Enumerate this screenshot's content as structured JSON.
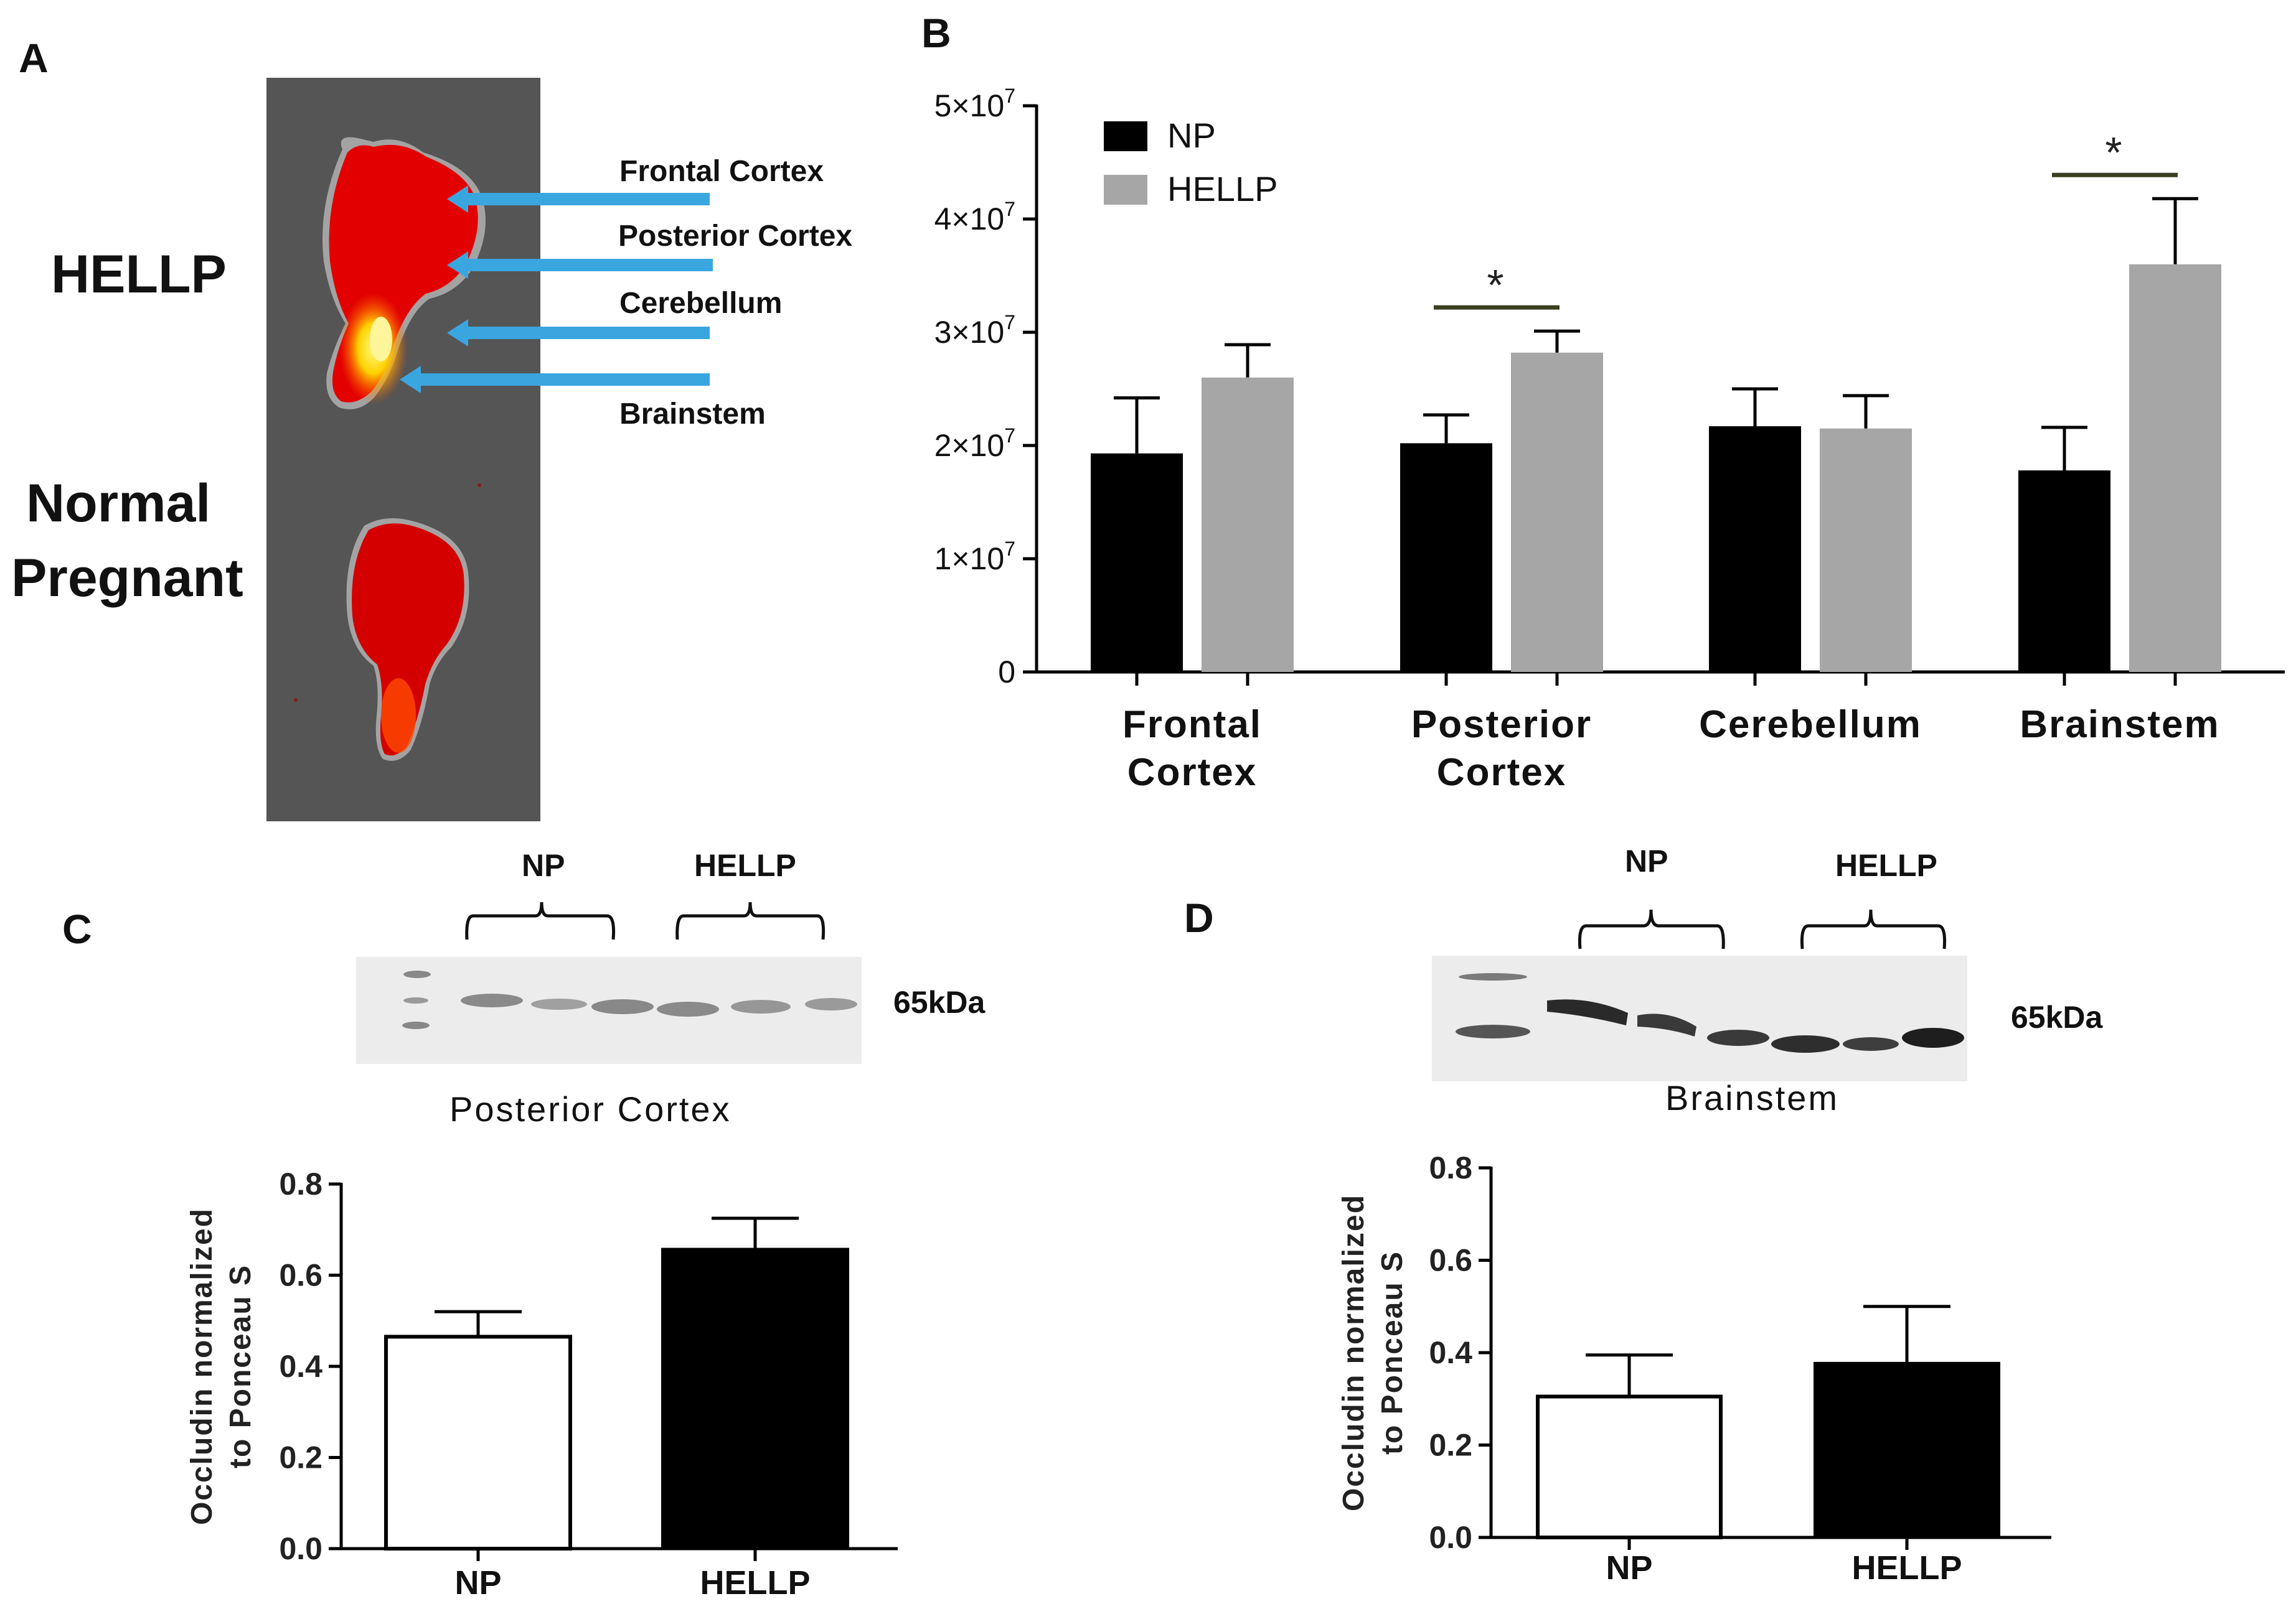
{
  "colors": {
    "np": "#000000",
    "hellp": "#a6a6a6",
    "arrow": "#3aa6e0",
    "sigline": "#3a4020"
  },
  "panel_a": {
    "letter": "A",
    "group_hellp": "HELLP",
    "group_np_line1": "Normal",
    "group_np_line2": "Pregnant",
    "regions": [
      "Frontal Cortex",
      "Posterior Cortex",
      "Cerebellum",
      "Brainstem"
    ]
  },
  "panel_c_blot": {
    "letter": "C",
    "np_label": "NP",
    "hellp_label": "HELLP",
    "size_label": "65kDa",
    "caption": "Posterior Cortex"
  },
  "panel_d_blot": {
    "letter": "D",
    "np_label": "NP",
    "hellp_label": "HELLP",
    "size_label": "65kDa",
    "caption": "Brainstem"
  },
  "chart_data": [
    {
      "panel": "B",
      "type": "bar",
      "categories": [
        "Frontal Cortex",
        "Posterior Cortex",
        "Cerebellum",
        "Brainstem"
      ],
      "series": [
        {
          "name": "NP",
          "values": [
            19300000,
            20200000,
            21700000,
            17800000
          ],
          "errors": [
            4900000,
            2500000,
            3300000,
            3800000
          ]
        },
        {
          "name": "HELLP",
          "values": [
            26000000,
            28200000,
            21500000,
            36000000
          ],
          "errors": [
            2900000,
            1900000,
            2900000,
            5800000
          ]
        }
      ],
      "ylim": [
        0,
        50000000
      ],
      "yticks": [
        0,
        10000000,
        20000000,
        30000000,
        40000000,
        50000000
      ],
      "ytick_labels": [
        {
          "base": "0",
          "exp": ""
        },
        {
          "base": "1×10",
          "exp": "7"
        },
        {
          "base": "2×10",
          "exp": "7"
        },
        {
          "base": "3×10",
          "exp": "7"
        },
        {
          "base": "4×10",
          "exp": "7"
        },
        {
          "base": "5×10",
          "exp": "7"
        }
      ],
      "xtick_labels": [
        [
          "Frontal",
          "Cortex"
        ],
        [
          "Posterior",
          "Cortex"
        ],
        [
          "Cerebellum"
        ],
        [
          "Brainstem"
        ]
      ],
      "significance": [
        {
          "category": "Posterior Cortex",
          "label": "*"
        },
        {
          "category": "Brainstem",
          "label": "*"
        }
      ],
      "legend": [
        "NP",
        "HELLP"
      ],
      "legend_position": "top-left",
      "xlabel": "",
      "ylabel": ""
    },
    {
      "panel": "C",
      "type": "bar",
      "categories": [
        "NP",
        "HELLP"
      ],
      "values": [
        0.465,
        0.66
      ],
      "errors": [
        0.055,
        0.065
      ],
      "ylim": [
        0,
        0.8
      ],
      "yticks": [
        "0.0",
        "0.2",
        "0.4",
        "0.6",
        "0.8"
      ],
      "ylabel_line1": "Occludin normalized",
      "ylabel_line2": "to Ponceau S",
      "xlabel": ""
    },
    {
      "panel": "D",
      "type": "bar",
      "categories": [
        "NP",
        "HELLP"
      ],
      "values": [
        0.305,
        0.38
      ],
      "errors": [
        0.09,
        0.12
      ],
      "ylim": [
        0,
        0.8
      ],
      "yticks": [
        "0.0",
        "0.2",
        "0.4",
        "0.6",
        "0.8"
      ],
      "ylabel_line1": "Occludin normalized",
      "ylabel_line2": "to Ponceau S",
      "xlabel": ""
    }
  ]
}
